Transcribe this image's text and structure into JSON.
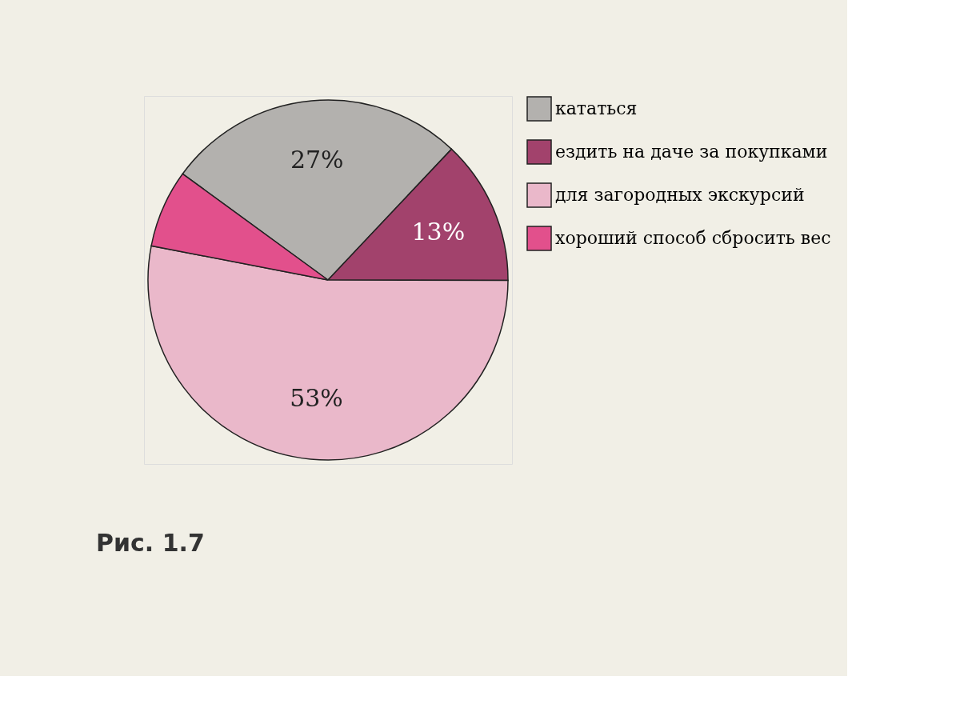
{
  "chart_data": {
    "type": "pie",
    "categories": [
      "кататься",
      "ездить на даче за покупками",
      "для загородных экскурсий",
      "хороший способ сбросить вес"
    ],
    "values": [
      27,
      13,
      53,
      7
    ],
    "colors": [
      "#b3b1ae",
      "#a2426c",
      "#eab8ca",
      "#e2508c"
    ],
    "value_labels": [
      "27%",
      "13%",
      "53%",
      null
    ],
    "legend": "right",
    "annotations": [
      "Рис. 1.7"
    ]
  }
}
